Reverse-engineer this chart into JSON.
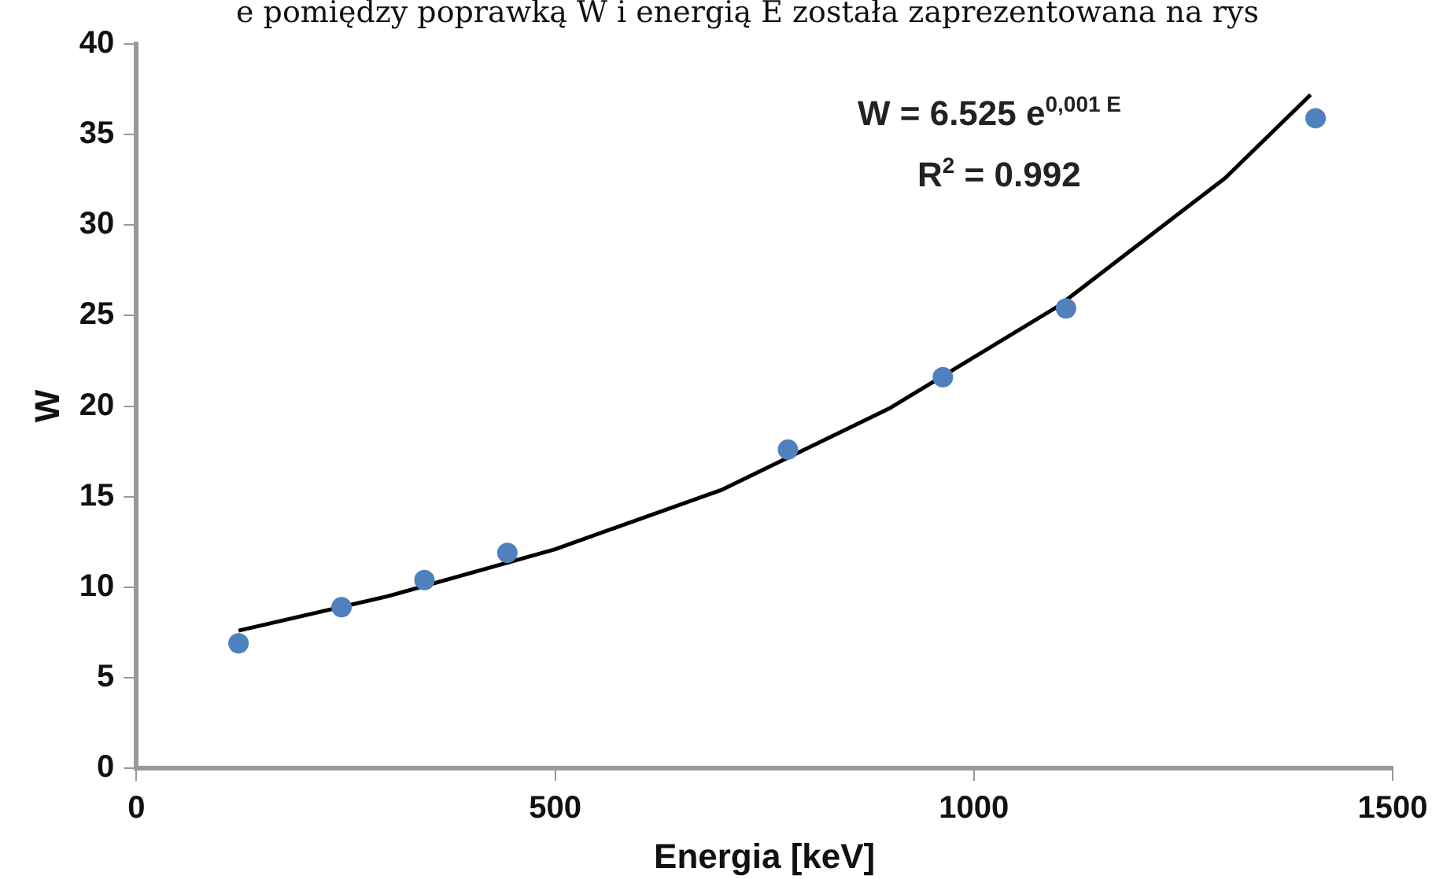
{
  "chart_data": {
    "type": "scatter",
    "xlabel": "Energia [keV]",
    "ylabel": "W",
    "xlim": [
      0,
      1500
    ],
    "xticks": [
      0,
      500,
      1000,
      1500
    ],
    "ylim": [
      0,
      40
    ],
    "yticks": [
      0,
      5,
      10,
      15,
      20,
      25,
      30,
      35,
      40
    ],
    "grid": false,
    "legend": false,
    "marker": "circle",
    "series": [
      {
        "color": "#4f81bd",
        "x": [
          122,
          245,
          344,
          443,
          778,
          963,
          1110,
          1408
        ],
        "values": [
          6.9,
          8.9,
          10.4,
          11.9,
          17.6,
          21.6,
          25.4,
          35.9
        ]
      },
      {
        "type": "line",
        "color": "#000000",
        "marker": "none",
        "line_style": "solid",
        "x": [
          122,
          300,
          500,
          700,
          900,
          1100,
          1300,
          1402
        ],
        "values": [
          7.6,
          9.5,
          12.1,
          15.4,
          19.9,
          25.5,
          32.6,
          37.2
        ]
      }
    ],
    "annotations": [
      "e pomiędzy poprawką W i energią E została zaprezentowana na rys",
      "W = 6.525 e$^{0,001 E}$",
      "R$^{2}$ = 0.992"
    ]
  }
}
